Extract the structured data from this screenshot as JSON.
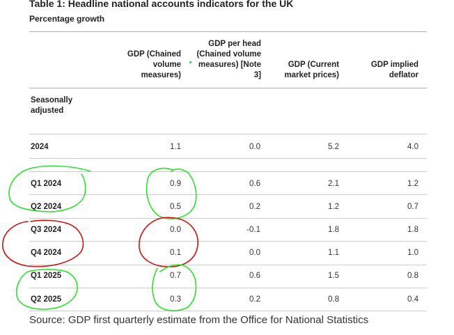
{
  "table": {
    "title": "Table 1: Headline national accounts indicators for the UK",
    "subtitle": "Percentage growth",
    "headers": [
      "GDP (Chained volume measures)",
      "GDP per head (Chained volume measures) [Note 3]",
      "GDP (Current market prices)",
      "GDP implied deflator"
    ],
    "section_label": "Seasonally adjusted",
    "rows": [
      {
        "label": "2024",
        "values": [
          "1.1",
          "0.0",
          "5.2",
          "4.0"
        ]
      },
      {
        "label": "Q1 2024",
        "values": [
          "0.9",
          "0.6",
          "2.1",
          "1.2"
        ]
      },
      {
        "label": "Q2 2024",
        "values": [
          "0.5",
          "0.2",
          "1.2",
          "0.7"
        ]
      },
      {
        "label": "Q3 2024",
        "values": [
          "0.0",
          "-0.1",
          "1.8",
          "1.8"
        ]
      },
      {
        "label": "Q4 2024",
        "values": [
          "0.1",
          "0.0",
          "1.1",
          "1.0"
        ]
      },
      {
        "label": "Q1 2025",
        "values": [
          "0.7",
          "0.6",
          "1.5",
          "0.8"
        ]
      },
      {
        "label": "Q2 2025",
        "values": [
          "0.3",
          "0.2",
          "0.8",
          "0.4"
        ]
      }
    ],
    "source": "Source: GDP first quarterly estimate from the Office for National Statistics"
  },
  "annotations": {
    "green": "#2ee02e",
    "red": "#cc1111"
  }
}
